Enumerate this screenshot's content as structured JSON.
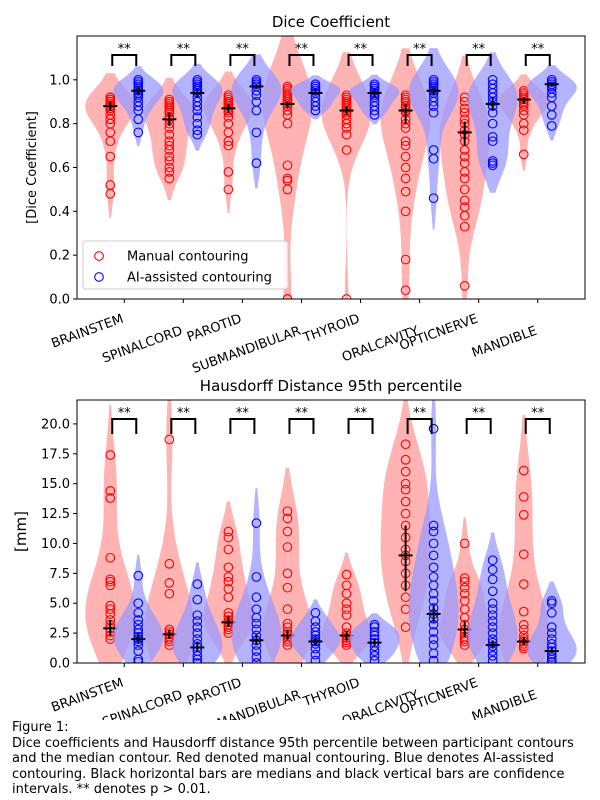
{
  "colors": {
    "manual": "#ff0000",
    "ai": "#0000ff",
    "manual_fill": "#ff9999",
    "ai_fill": "#9999ff",
    "bars": "#000000"
  },
  "caption": {
    "heading": "Figure 1:",
    "body": "Dice coefficients and Hausdorff distance 95th percentile between participant contours and the median contour. Red denoted manual contouring. Blue denotes AI-assisted contouring. Black horizontal bars are medians and black vertical bars are confidence intervals. ** denotes p > 0.01."
  },
  "chart_data": [
    {
      "type": "violin",
      "title": "Dice Coefficient",
      "ylabel": "[Dice Coefficient]",
      "ylim": [
        0,
        1.2
      ],
      "yticks": [
        "0.0",
        "0.2",
        "0.4",
        "0.6",
        "0.8",
        "1.0"
      ],
      "categories": [
        "BRAINSTEM",
        "SPINALCORD",
        "PAROTID",
        "SUBMANDIBULAR",
        "THYROID",
        "ORALCAVITY",
        "OPTICNERVE",
        "MANDIBLE"
      ],
      "significance": [
        "**",
        "**",
        "**",
        "**",
        "**",
        "**",
        "**",
        "**"
      ],
      "legend": {
        "position": "lower-left",
        "entries": [
          "Manual contouring",
          "AI-assisted contouring"
        ]
      },
      "series": [
        {
          "name": "Manual contouring",
          "medians": [
            0.88,
            0.82,
            0.87,
            0.89,
            0.86,
            0.86,
            0.76,
            0.91
          ],
          "ci": [
            [
              0.86,
              0.9
            ],
            [
              0.79,
              0.85
            ],
            [
              0.85,
              0.89
            ],
            [
              0.87,
              0.9
            ],
            [
              0.84,
              0.88
            ],
            [
              0.8,
              0.89
            ],
            [
              0.7,
              0.81
            ],
            [
              0.89,
              0.92
            ]
          ],
          "points": [
            [
              0.48,
              0.52,
              0.65,
              0.72,
              0.76,
              0.8,
              0.82,
              0.84,
              0.86,
              0.87,
              0.88,
              0.88,
              0.89,
              0.89,
              0.9,
              0.9,
              0.91,
              0.91,
              0.92,
              0.92
            ],
            [
              0.55,
              0.58,
              0.6,
              0.63,
              0.65,
              0.68,
              0.7,
              0.72,
              0.75,
              0.78,
              0.8,
              0.82,
              0.83,
              0.85,
              0.86,
              0.87,
              0.88,
              0.89,
              0.9,
              0.91
            ],
            [
              0.5,
              0.58,
              0.7,
              0.72,
              0.76,
              0.8,
              0.83,
              0.85,
              0.86,
              0.87,
              0.88,
              0.89,
              0.9,
              0.9,
              0.91,
              0.92,
              0.93
            ],
            [
              0.0,
              0.0,
              0.5,
              0.54,
              0.55,
              0.61,
              0.8,
              0.84,
              0.86,
              0.88,
              0.89,
              0.9,
              0.91,
              0.92,
              0.93,
              0.94,
              0.95,
              0.96,
              0.97
            ],
            [
              0.0,
              0.68,
              0.75,
              0.78,
              0.8,
              0.82,
              0.84,
              0.85,
              0.86,
              0.87,
              0.88,
              0.89,
              0.9,
              0.91,
              0.92,
              0.93
            ],
            [
              0.04,
              0.18,
              0.4,
              0.49,
              0.55,
              0.6,
              0.65,
              0.7,
              0.72,
              0.78,
              0.8,
              0.82,
              0.85,
              0.86,
              0.87,
              0.88,
              0.9,
              0.91,
              0.92,
              0.93
            ],
            [
              0.06,
              0.33,
              0.38,
              0.42,
              0.45,
              0.5,
              0.55,
              0.58,
              0.62,
              0.65,
              0.68,
              0.72,
              0.75,
              0.77,
              0.8,
              0.82,
              0.85,
              0.87,
              0.9,
              0.92
            ],
            [
              0.66,
              0.77,
              0.8,
              0.84,
              0.86,
              0.88,
              0.89,
              0.9,
              0.91,
              0.92,
              0.93,
              0.94,
              0.95
            ]
          ]
        },
        {
          "name": "AI-assisted contouring",
          "medians": [
            0.95,
            0.94,
            0.97,
            0.94,
            0.94,
            0.95,
            0.89,
            0.98
          ],
          "ci": [
            [
              0.93,
              0.97
            ],
            [
              0.92,
              0.96
            ],
            [
              0.96,
              0.98
            ],
            [
              0.93,
              0.96
            ],
            [
              0.92,
              0.96
            ],
            [
              0.93,
              0.97
            ],
            [
              0.86,
              0.92
            ],
            [
              0.97,
              0.99
            ]
          ],
          "points": [
            [
              0.76,
              0.82,
              0.86,
              0.88,
              0.9,
              0.92,
              0.93,
              0.94,
              0.95,
              0.96,
              0.97,
              0.98,
              0.99,
              1.0
            ],
            [
              0.75,
              0.77,
              0.8,
              0.83,
              0.86,
              0.88,
              0.9,
              0.92,
              0.94,
              0.95,
              0.96,
              0.97,
              0.98,
              0.99,
              1.0
            ],
            [
              0.62,
              0.76,
              0.86,
              0.9,
              0.93,
              0.95,
              0.97,
              0.98,
              0.99,
              1.0
            ],
            [
              0.86,
              0.88,
              0.9,
              0.92,
              0.94,
              0.95,
              0.96,
              0.97,
              0.98
            ],
            [
              0.84,
              0.86,
              0.88,
              0.9,
              0.92,
              0.93,
              0.94,
              0.95,
              0.96,
              0.97,
              0.98
            ],
            [
              0.46,
              0.64,
              0.68,
              0.85,
              0.88,
              0.9,
              0.92,
              0.94,
              0.95,
              0.96,
              0.97,
              0.98,
              0.99,
              1.0
            ],
            [
              0.61,
              0.62,
              0.63,
              0.72,
              0.74,
              0.8,
              0.85,
              0.88,
              0.9,
              0.92,
              0.94,
              0.96,
              0.98,
              1.0
            ],
            [
              0.79,
              0.84,
              0.88,
              0.92,
              0.94,
              0.96,
              0.97,
              0.98,
              0.99,
              1.0
            ]
          ]
        }
      ]
    },
    {
      "type": "violin",
      "title": "Hausdorff Distance 95th percentile",
      "ylabel": "[mm]",
      "ylim": [
        0,
        22
      ],
      "yticks": [
        "0.0",
        "2.5",
        "5.0",
        "7.5",
        "10.0",
        "12.5",
        "15.0",
        "17.5",
        "20.0"
      ],
      "categories": [
        "BRAINSTEM",
        "SPINALCORD",
        "PAROTID",
        "SUBMANDIBULAR",
        "THYROID",
        "ORALCAVITY",
        "OPTICNERVE",
        "MANDIBLE"
      ],
      "significance": [
        "**",
        "**",
        "**",
        "**",
        "**",
        "**",
        "**",
        "**"
      ],
      "series": [
        {
          "name": "Manual contouring",
          "medians": [
            2.9,
            2.4,
            3.4,
            2.3,
            2.3,
            9.0,
            2.8,
            1.8
          ],
          "ci": [
            [
              2.3,
              3.6
            ],
            [
              2.0,
              2.8
            ],
            [
              3.0,
              3.9
            ],
            [
              1.9,
              2.8
            ],
            [
              1.9,
              2.7
            ],
            [
              6.0,
              11.5
            ],
            [
              2.2,
              3.5
            ],
            [
              1.5,
              2.2
            ]
          ],
          "points": [
            [
              2.0,
              2.3,
              2.6,
              2.9,
              3.2,
              3.6,
              4.1,
              4.5,
              4.8,
              6.5,
              6.8,
              7.0,
              8.8,
              13.8,
              14.4,
              17.4
            ],
            [
              1.5,
              1.8,
              2.0,
              2.2,
              2.4,
              2.6,
              2.8,
              5.8,
              6.7,
              8.3,
              18.7
            ],
            [
              2.5,
              2.8,
              3.0,
              3.2,
              3.4,
              3.6,
              3.9,
              4.2,
              5.5,
              6.2,
              6.8,
              7.2,
              8.0,
              9.5,
              10.5,
              11.0
            ],
            [
              1.5,
              1.8,
              2.0,
              2.2,
              2.4,
              2.6,
              3.0,
              3.3,
              4.5,
              6.3,
              7.5,
              9.7,
              11.0,
              12.1,
              12.7
            ],
            [
              1.5,
              1.7,
              1.9,
              2.1,
              2.3,
              2.5,
              3.0,
              4.0,
              4.5,
              5.0,
              5.8,
              6.5,
              7.4
            ],
            [
              3.0,
              4.5,
              5.5,
              6.5,
              7.5,
              8.5,
              9.0,
              9.5,
              10.5,
              11.5,
              12.5,
              13.5,
              14.5,
              15.0,
              16.0,
              17.0,
              18.3
            ],
            [
              1.5,
              1.8,
              2.0,
              2.2,
              2.5,
              2.8,
              3.2,
              3.8,
              4.5,
              5.2,
              5.8,
              6.3,
              6.8,
              7.1,
              10.0
            ],
            [
              1.2,
              1.4,
              1.6,
              1.8,
              2.0,
              2.3,
              2.8,
              3.2,
              4.3,
              6.6,
              9.1,
              12.4,
              13.9,
              16.1
            ]
          ]
        },
        {
          "name": "AI-assisted contouring",
          "medians": [
            2.0,
            1.3,
            1.9,
            1.8,
            1.7,
            4.1,
            1.5,
            1.0
          ],
          "ci": [
            [
              1.6,
              2.4
            ],
            [
              1.0,
              1.8
            ],
            [
              1.5,
              2.4
            ],
            [
              1.5,
              2.1
            ],
            [
              1.4,
              2.0
            ],
            [
              3.4,
              4.8
            ],
            [
              1.2,
              1.9
            ],
            [
              0.8,
              1.3
            ]
          ],
          "points": [
            [
              0.1,
              0.3,
              1.0,
              1.5,
              1.8,
              2.0,
              2.2,
              2.5,
              2.8,
              3.2,
              3.6,
              4.2,
              5.0,
              7.3
            ],
            [
              0.0,
              0.3,
              0.6,
              1.0,
              1.3,
              1.6,
              2.0,
              2.5,
              3.0,
              3.5,
              4.0,
              5.3,
              6.6
            ],
            [
              0.0,
              0.5,
              1.0,
              1.5,
              1.9,
              2.3,
              2.8,
              3.3,
              3.8,
              4.5,
              5.5,
              7.2,
              11.7
            ],
            [
              0.2,
              0.7,
              1.2,
              1.6,
              1.8,
              2.0,
              2.3,
              2.6,
              3.0,
              3.5,
              4.2
            ],
            [
              0.2,
              0.6,
              1.0,
              1.4,
              1.7,
              2.0,
              2.3,
              2.6,
              3.0,
              3.2
            ],
            [
              0.2,
              0.8,
              1.5,
              2.0,
              2.6,
              3.2,
              3.7,
              4.1,
              4.6,
              5.2,
              5.8,
              6.5,
              7.2,
              8.0,
              9.0,
              10.0,
              11.0,
              11.5,
              19.6
            ],
            [
              0.2,
              0.6,
              1.0,
              1.4,
              1.7,
              2.0,
              2.5,
              3.0,
              3.5,
              4.0,
              4.5,
              5.0,
              6.0,
              7.0,
              7.8,
              8.6
            ],
            [
              0.1,
              0.3,
              0.5,
              0.7,
              1.0,
              1.3,
              1.6,
              2.0,
              2.5,
              3.0,
              4.2,
              5.0,
              5.2
            ]
          ]
        }
      ]
    }
  ]
}
